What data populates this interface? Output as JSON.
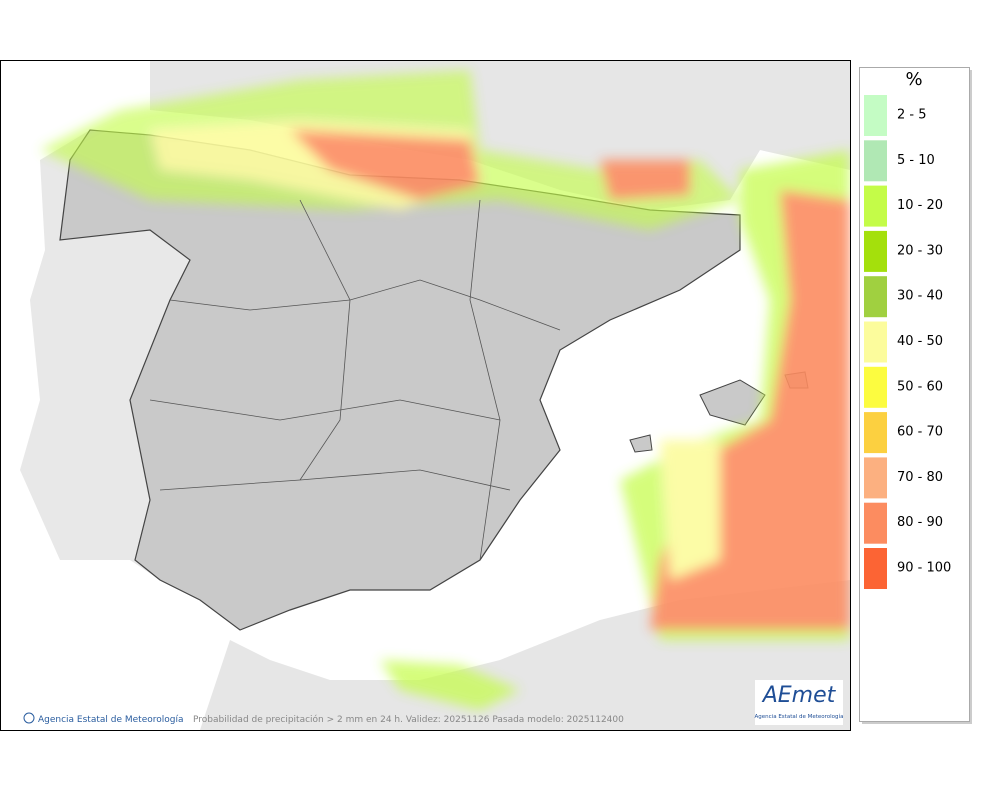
{
  "legend": {
    "title": "%",
    "items": [
      {
        "label": "2 - 5",
        "color": "#c4fcc4"
      },
      {
        "label": "5 - 10",
        "color": "#b0e8b4"
      },
      {
        "label": "10 - 20",
        "color": "#c4fc48"
      },
      {
        "label": "20 - 30",
        "color": "#a4e00c"
      },
      {
        "label": "30 - 40",
        "color": "#a0d040"
      },
      {
        "label": "40 - 50",
        "color": "#fcfc9c"
      },
      {
        "label": "50 - 60",
        "color": "#fcfc40"
      },
      {
        "label": "60 - 70",
        "color": "#fcd040"
      },
      {
        "label": "70 - 80",
        "color": "#fcb080"
      },
      {
        "label": "80 - 90",
        "color": "#fc8c60"
      },
      {
        "label": "90 - 100",
        "color": "#fc6434"
      }
    ]
  },
  "credit": "Agencia Estatal de Meteorología",
  "caption": "Probabilidad de precipitación > 2 mm en 24 h. Validez: 20251126 Pasada modelo: 2025112400",
  "logo": {
    "text": "AEmet",
    "subtitle": "Agencia Estatal de Meteorología"
  }
}
